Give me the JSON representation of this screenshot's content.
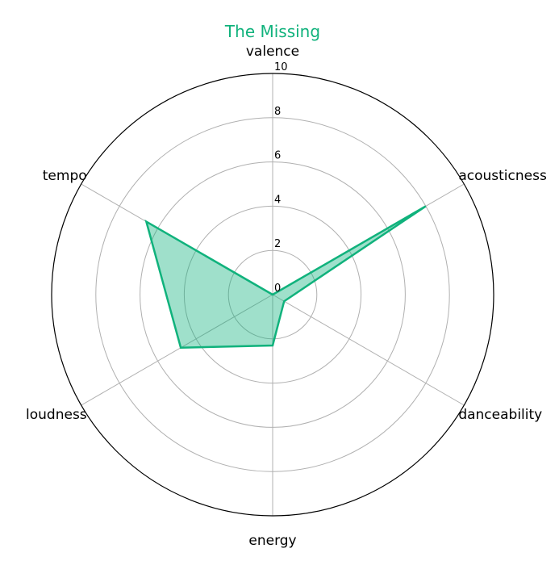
{
  "chart_data": {
    "type": "radar",
    "title": "The Missing",
    "axes": [
      "valence",
      "acousticness",
      "danceability",
      "energy",
      "loudness",
      "tempo"
    ],
    "series": [
      {
        "values": [
          0,
          8,
          0.6,
          2.3,
          4.8,
          6.6
        ]
      }
    ],
    "rlim": [
      0,
      10
    ],
    "rticks": [
      "0",
      "2",
      "4",
      "6",
      "8",
      "10"
    ],
    "grid": true,
    "colors": {
      "line": "#10b27c",
      "fill": "#10b27c",
      "grid": "#b0b0b0",
      "frame": "#000000"
    }
  }
}
